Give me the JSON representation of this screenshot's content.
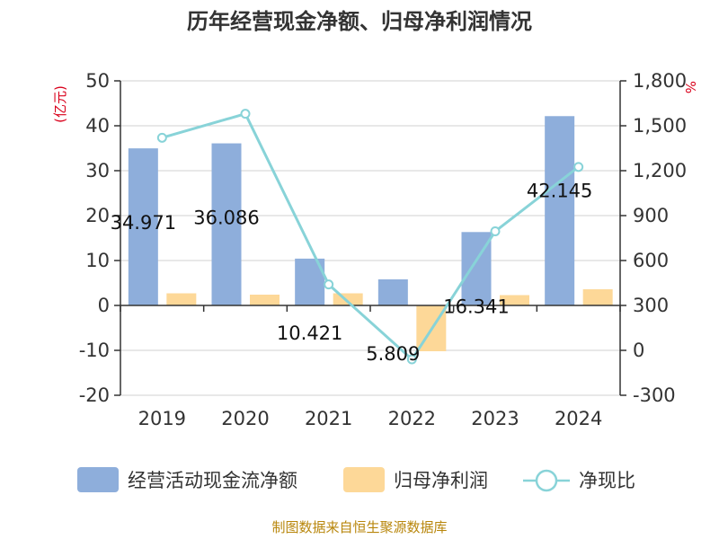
{
  "chart_data": {
    "type": "bar+line",
    "title": "历年经营现金净额、归母净利润情况",
    "categories": [
      "2019",
      "2020",
      "2021",
      "2022",
      "2023",
      "2024"
    ],
    "series": [
      {
        "name": "经营活动现金流净额",
        "axis": "left",
        "kind": "bar",
        "color": "#8eaedb",
        "values": [
          34.971,
          36.086,
          10.421,
          5.809,
          16.341,
          42.145
        ],
        "labels": [
          "34.971",
          "36.086",
          "10.421",
          "5.809",
          "16.341",
          "42.145"
        ]
      },
      {
        "name": "归母净利润",
        "axis": "left",
        "kind": "bar",
        "color": "#fdd898",
        "values": [
          2.7,
          2.4,
          2.7,
          -10.2,
          2.3,
          3.6
        ]
      },
      {
        "name": "净现比",
        "axis": "right",
        "kind": "line",
        "color": "#88d3d8",
        "values": [
          1420,
          1580,
          440,
          -60,
          795,
          1225
        ]
      }
    ],
    "left_axis": {
      "unit": "(亿元)",
      "min": -20,
      "max": 50,
      "step": 10,
      "ticks": [
        "50",
        "40",
        "30",
        "20",
        "10",
        "0",
        "-10",
        "-20"
      ]
    },
    "right_axis": {
      "unit": "%",
      "min": -300,
      "max": 1800,
      "step": 300,
      "ticks": [
        "1,800",
        "1,500",
        "1,200",
        "900",
        "600",
        "300",
        "0",
        "-300"
      ]
    },
    "legend": [
      "经营活动现金流净额",
      "归母净利润",
      "净现比"
    ],
    "legend_position": "bottom",
    "source": "制图数据来自恒生聚源数据库"
  }
}
